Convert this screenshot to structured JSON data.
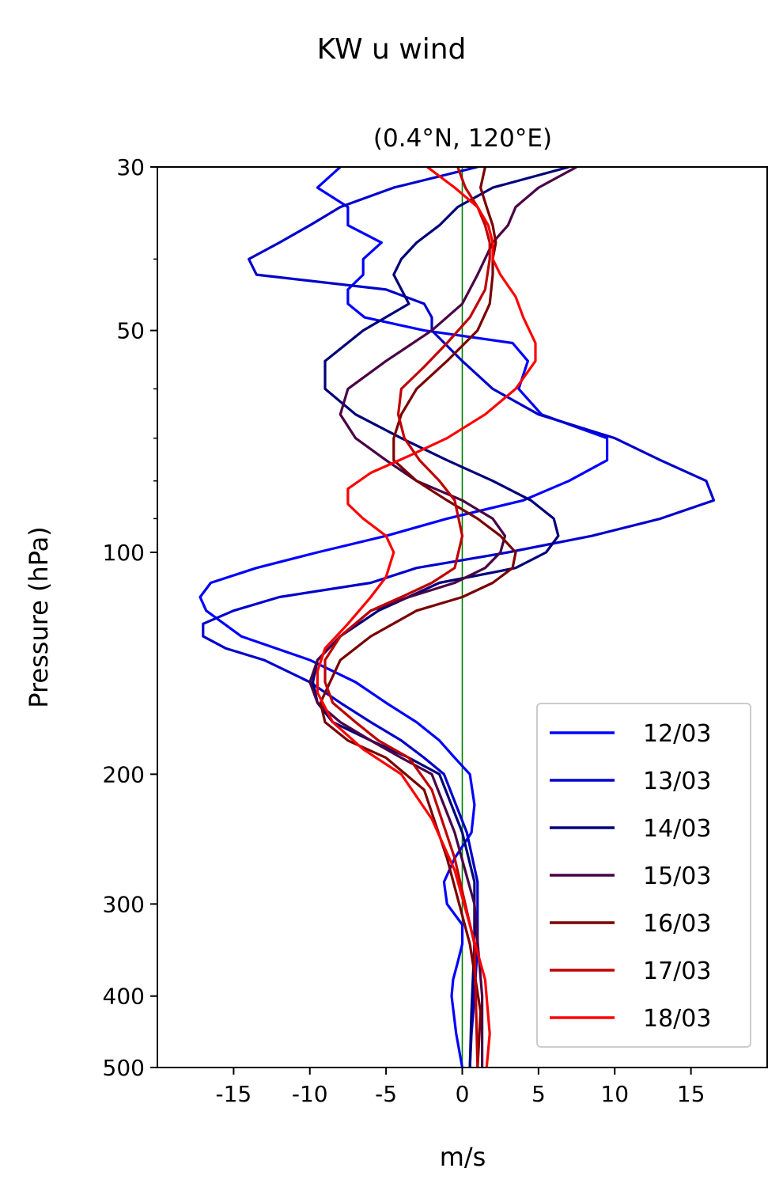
{
  "suptitle": "KW u wind",
  "chart_data": {
    "type": "line",
    "title": "(0.4°N, 120°E)",
    "xlabel": "m/s",
    "ylabel": "Pressure (hPa)",
    "xlim": [
      -20,
      20
    ],
    "ylim": [
      500,
      30
    ],
    "yscale": "log",
    "x_ticks": [
      -15,
      -10,
      -5,
      0,
      5,
      10,
      15
    ],
    "x_tick_labels": [
      "-15",
      "-10",
      "-5",
      "0",
      "5",
      "10",
      "15"
    ],
    "y_ticks": [
      30,
      50,
      100,
      200,
      300,
      400,
      500
    ],
    "y_tick_labels": [
      "30",
      "50",
      "100",
      "200",
      "300",
      "400",
      "500"
    ],
    "y_minor_ticks": [
      40,
      60,
      70,
      80,
      90
    ],
    "reference_line": {
      "x": 0,
      "color": "#008000"
    },
    "legend_position": "lower right",
    "series": [
      {
        "name": "12/03",
        "color": "#0000ff",
        "x": [
          -8,
          -9.5,
          -7.5,
          -7.5,
          -5.3,
          -6.5,
          -6.5,
          -7.5,
          -7.5,
          -6.4,
          -2.5,
          3.3,
          4.3,
          3.7,
          5.2,
          9.5,
          9.5,
          7,
          4,
          -1,
          -5,
          -9.5,
          -13.5,
          -16.5,
          -17.2,
          -16.8,
          -14.5,
          -10,
          -7,
          -5,
          -3,
          -1.5,
          -0.5,
          0.5,
          0.8,
          0.6,
          -0.5,
          -1.2,
          -1,
          0,
          0,
          -0.3,
          -0.6,
          -0.7,
          -0.4,
          0
        ],
        "p": [
          30,
          32,
          34,
          36,
          38,
          40,
          42,
          44,
          46,
          48,
          50,
          52,
          55,
          60,
          65,
          70,
          75,
          80,
          85,
          90,
          95,
          100,
          105,
          110,
          115,
          120,
          130,
          140,
          150,
          160,
          170,
          180,
          190,
          200,
          220,
          240,
          260,
          280,
          300,
          320,
          340,
          360,
          380,
          400,
          450,
          500
        ]
      },
      {
        "name": "13/03",
        "color": "#0000cc",
        "x": [
          1,
          -4.5,
          -8,
          -10,
          -12,
          -14,
          -13.5,
          -5,
          -2.5,
          -2,
          -2,
          0,
          2,
          5,
          10,
          13,
          16,
          16.5,
          13,
          8.5,
          3,
          -3,
          -6,
          -12,
          -15,
          -17,
          -17,
          -15.5,
          -13,
          -10,
          -8,
          -6,
          -4,
          -2.5,
          -1.2,
          0.3,
          1,
          1,
          0.8,
          0.6,
          0.5
        ],
        "p": [
          30,
          32,
          34,
          36,
          38,
          40,
          42,
          44,
          46,
          48,
          50,
          55,
          60,
          65,
          70,
          75,
          80,
          85,
          90,
          95,
          100,
          105,
          110,
          115,
          120,
          125,
          130,
          135,
          140,
          150,
          160,
          170,
          180,
          190,
          200,
          240,
          280,
          340,
          400,
          450,
          500
        ]
      },
      {
        "name": "14/03",
        "color": "#00007a",
        "x": [
          7,
          2,
          -0.3,
          -1.5,
          -3,
          -4,
          -4.5,
          -3.5,
          -6.5,
          -9,
          -9,
          -7,
          -4,
          -1,
          2,
          4.5,
          6,
          6.3,
          5.5,
          3.5,
          -1.5,
          -5.5,
          -8,
          -9.5,
          -9.8,
          -9.5,
          -8.5,
          -6,
          -3.5,
          -1.5,
          0,
          0.8,
          0.8,
          0.6,
          0.5
        ],
        "p": [
          30,
          32,
          34,
          36,
          38,
          40,
          42,
          46,
          50,
          55,
          60,
          65,
          70,
          75,
          80,
          85,
          90,
          95,
          100,
          105,
          110,
          120,
          130,
          140,
          150,
          160,
          170,
          180,
          190,
          200,
          240,
          280,
          340,
          420,
          500
        ]
      },
      {
        "name": "15/03",
        "color": "#4a0045",
        "x": [
          7.5,
          5,
          3.5,
          3,
          2,
          1,
          0,
          -2,
          -5,
          -7.5,
          -8,
          -7,
          -5,
          -3,
          0,
          2,
          2.8,
          2.5,
          1.5,
          -0.5,
          -3.5,
          -6,
          -8,
          -9.5,
          -10,
          -9.5,
          -8,
          -6,
          -4,
          -2,
          -0.5,
          0.8,
          1.3,
          1.3
        ],
        "p": [
          30,
          32,
          34,
          36,
          38,
          42,
          46,
          50,
          55,
          60,
          65,
          70,
          75,
          80,
          85,
          90,
          95,
          100,
          105,
          110,
          115,
          120,
          130,
          140,
          150,
          160,
          170,
          180,
          190,
          200,
          240,
          300,
          400,
          500
        ]
      },
      {
        "name": "16/03",
        "color": "#7a0000",
        "x": [
          1.5,
          1.2,
          1.6,
          2,
          2.2,
          2,
          2,
          1.8,
          1,
          -1,
          -3,
          -4,
          -4.5,
          -4.5,
          -3,
          -1,
          1,
          2.5,
          3.5,
          3.3,
          2,
          0,
          -3,
          -6,
          -8,
          -9.3,
          -9,
          -7.5,
          -5,
          -2.5,
          -1,
          0.5,
          1.2,
          1
        ],
        "p": [
          30,
          32,
          34,
          36,
          38,
          40,
          42,
          46,
          50,
          55,
          60,
          65,
          70,
          75,
          80,
          85,
          90,
          95,
          100,
          105,
          110,
          115,
          120,
          130,
          140,
          160,
          170,
          180,
          190,
          210,
          260,
          340,
          420,
          500
        ]
      },
      {
        "name": "17/03",
        "color": "#c00000",
        "x": [
          -0.3,
          0.2,
          1,
          1.5,
          1.8,
          1.8,
          1.5,
          0.5,
          -1,
          -2.5,
          -4,
          -4.2,
          -3.8,
          -2.8,
          -1.5,
          -0.5,
          0,
          -0.5,
          -2,
          -4,
          -6,
          -8,
          -9,
          -9,
          -8.5,
          -7,
          -5.5,
          -3.5,
          -2,
          -0.5,
          0.8,
          1
        ],
        "p": [
          30,
          32,
          34,
          36,
          38,
          40,
          44,
          48,
          52,
          56,
          60,
          65,
          70,
          75,
          80,
          85,
          95,
          105,
          110,
          115,
          120,
          130,
          140,
          150,
          160,
          170,
          180,
          190,
          210,
          260,
          340,
          500
        ]
      },
      {
        "name": "18/03",
        "color": "#ff0000",
        "x": [
          -2.3,
          -0.5,
          1,
          1.7,
          2,
          2,
          2.5,
          3.5,
          4,
          4.8,
          4.8,
          3.5,
          1.5,
          -1,
          -3.5,
          -6,
          -7.5,
          -7.5,
          -6.5,
          -5,
          -4.5,
          -5,
          -6,
          -7.5,
          -9,
          -9.5,
          -9.5,
          -8.5,
          -6.5,
          -4,
          -2,
          -0.5,
          1.5,
          1.8,
          1.6
        ],
        "p": [
          30,
          32,
          34,
          36,
          38,
          40,
          42,
          45,
          48,
          52,
          55,
          60,
          65,
          70,
          74,
          78,
          82,
          86,
          90,
          95,
          100,
          108,
          115,
          125,
          135,
          145,
          155,
          170,
          185,
          200,
          230,
          270,
          380,
          450,
          500
        ]
      }
    ]
  }
}
